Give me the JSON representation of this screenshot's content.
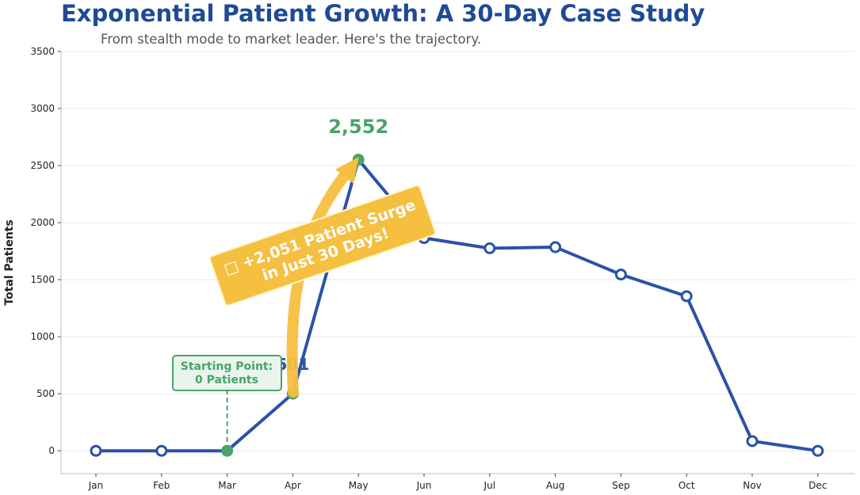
{
  "chart_data": {
    "type": "line",
    "title": "Exponential Patient Growth: A 30-Day Case Study",
    "subtitle": "From stealth mode to market leader. Here's the trajectory.",
    "xlabel": "",
    "ylabel": "Total Patients",
    "categories": [
      "Jan",
      "Feb",
      "Mar",
      "Apr",
      "May",
      "Jun",
      "Jul",
      "Aug",
      "Sep",
      "Oct",
      "Nov",
      "Dec"
    ],
    "values": [
      0,
      0,
      0,
      501,
      2552,
      1865,
      1775,
      1785,
      1545,
      1355,
      85,
      0
    ],
    "ylim": [
      -200,
      3500
    ],
    "yticks": [
      0,
      500,
      1000,
      1500,
      2000,
      2500,
      3000,
      3500
    ],
    "grid": "horizontal",
    "colors": {
      "line": "#2a52a8",
      "highlight": "#4aa36a",
      "annotation": "#f5bf40",
      "title": "#1f4a96"
    },
    "annotations": {
      "peak_label": "2,552",
      "april_label": "501",
      "start_box": [
        "Starting Point:",
        "0 Patients"
      ],
      "surge_box": [
        "□ +2,051 Patient Surge",
        "in Just 30 Days!"
      ]
    }
  }
}
